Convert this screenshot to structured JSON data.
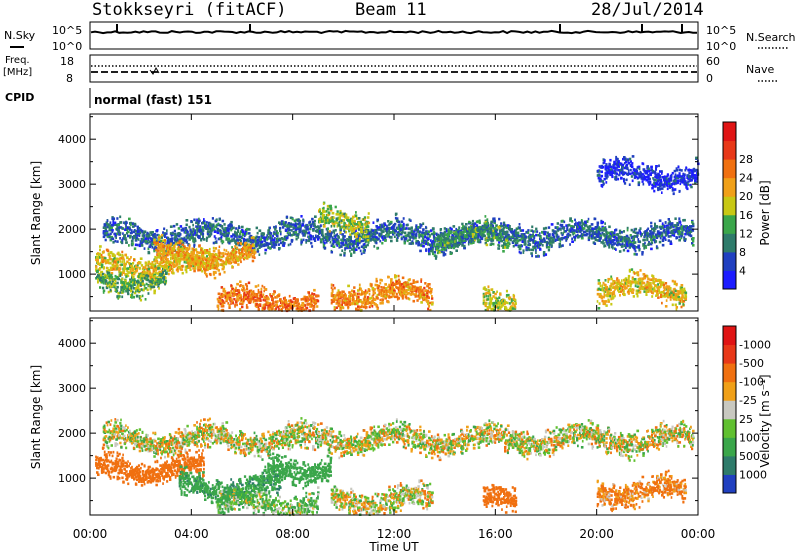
{
  "header": {
    "station": "Stokkseyri (fitACF)",
    "beam": "Beam 11",
    "date": "28/Jul/2014"
  },
  "panels": {
    "nsky": {
      "label": "N.Sky",
      "left_ticks": [
        "10^5",
        "10^0"
      ],
      "right_ticks": [
        "10^5",
        "10^0"
      ],
      "right_label": "N.Search"
    },
    "freq": {
      "label_line1": "Freq.",
      "label_line2": "[MHz]",
      "left_ticks": [
        "18",
        "8"
      ],
      "right_ticks": [
        "60",
        "0"
      ],
      "right_label": "Nave"
    },
    "cpid": {
      "label": "CPID",
      "mode": "normal (fast) 151"
    }
  },
  "chart_data": [
    {
      "type": "heatmap",
      "title": "",
      "xlabel": "Time UT",
      "ylabel": "Slant Range [km]",
      "x_ticks": [
        "00:00",
        "04:00",
        "08:00",
        "12:00",
        "16:00",
        "20:00",
        "00:00"
      ],
      "x_range_hours": [
        0,
        24
      ],
      "y_ticks": [
        1000,
        2000,
        3000,
        4000
      ],
      "y_range": [
        180,
        4560
      ],
      "colorbar": {
        "label": "Power [dB]",
        "ticks": [
          "4",
          "8",
          "12",
          "16",
          "20",
          "24",
          "28"
        ],
        "colors": [
          "#1c1cff",
          "#2040c0",
          "#2e7b6a",
          "#3aa64a",
          "#c8c814",
          "#f0a018",
          "#f07010",
          "#e83818",
          "#e01414"
        ]
      },
      "features": [
        {
          "t_start": 0.5,
          "t_end": 23.8,
          "range_km": 1850,
          "value_db": 10
        },
        {
          "t_start": 0.2,
          "t_end": 5.0,
          "range_km": 1200,
          "value_db": 22
        },
        {
          "t_start": 0.2,
          "t_end": 3.0,
          "range_km": 850,
          "value_db": 16
        },
        {
          "t_start": 2.5,
          "t_end": 6.5,
          "range_km": 1400,
          "value_db": 24
        },
        {
          "t_start": 5.0,
          "t_end": 9.0,
          "range_km": 400,
          "value_db": 28
        },
        {
          "t_start": 9.0,
          "t_end": 11.0,
          "range_km": 2150,
          "value_db": 18
        },
        {
          "t_start": 9.5,
          "t_end": 13.5,
          "range_km": 550,
          "value_db": 26
        },
        {
          "t_start": 13.5,
          "t_end": 16.5,
          "range_km": 1800,
          "value_db": 14
        },
        {
          "t_start": 15.5,
          "t_end": 16.8,
          "range_km": 450,
          "value_db": 20
        },
        {
          "t_start": 20.0,
          "t_end": 23.5,
          "range_km": 650,
          "value_db": 22
        },
        {
          "t_start": 20.0,
          "t_end": 24.0,
          "range_km": 3200,
          "value_db": 6
        }
      ]
    },
    {
      "type": "heatmap",
      "title": "",
      "xlabel": "Time UT",
      "ylabel": "Slant Range [km]",
      "x_ticks": [
        "00:00",
        "04:00",
        "08:00",
        "12:00",
        "16:00",
        "20:00",
        "00:00"
      ],
      "x_range_hours": [
        0,
        24
      ],
      "y_ticks": [
        1000,
        2000,
        3000,
        4000
      ],
      "y_range": [
        180,
        4560
      ],
      "colorbar": {
        "label": "Velocity [m s⁻¹]",
        "ticks": [
          "1000",
          "500",
          "100",
          "25",
          "-25",
          "-100",
          "-500",
          "-1000"
        ],
        "colors": [
          "#2040c0",
          "#2e7b6a",
          "#3aa64a",
          "#60c030",
          "#c8c8c0",
          "#f0a018",
          "#f07010",
          "#e83818",
          "#e01414"
        ]
      },
      "features": [
        {
          "t_start": 0.5,
          "t_end": 23.8,
          "range_km": 1850,
          "value_ms": 0
        },
        {
          "t_start": 0.2,
          "t_end": 4.5,
          "range_km": 1200,
          "value_ms": -300
        },
        {
          "t_start": 3.5,
          "t_end": 7.5,
          "range_km": 800,
          "value_ms": 400
        },
        {
          "t_start": 7.0,
          "t_end": 9.5,
          "range_km": 1200,
          "value_ms": 300
        },
        {
          "t_start": 5.0,
          "t_end": 9.0,
          "range_km": 400,
          "value_ms": 100
        },
        {
          "t_start": 9.5,
          "t_end": 13.5,
          "range_km": 500,
          "value_ms": 0
        },
        {
          "t_start": 15.5,
          "t_end": 16.8,
          "range_km": 450,
          "value_ms": -300
        },
        {
          "t_start": 20.0,
          "t_end": 23.5,
          "range_km": 700,
          "value_ms": -150
        }
      ]
    }
  ]
}
